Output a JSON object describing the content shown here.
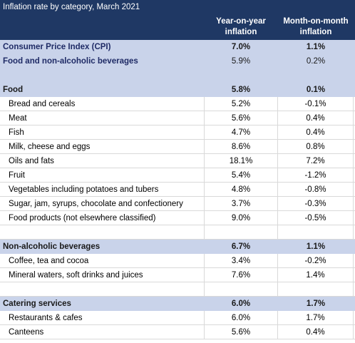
{
  "table": {
    "title": "Inflation rate by category, March 2021",
    "col_yoy": [
      "Year-on-year",
      "inflation"
    ],
    "col_mom": [
      "Month-on-month",
      "inflation"
    ],
    "cpi": {
      "label": "Consumer Price Index (CPI)",
      "yoy": "7.0%",
      "mom": "1.1%"
    },
    "food_bev": {
      "label": "Food and non-alcoholic beverages",
      "yoy": "5.9%",
      "mom": "0.2%"
    },
    "food": {
      "label": "Food",
      "yoy": "5.8%",
      "mom": "0.1%",
      "items": [
        {
          "label": "Bread and cereals",
          "yoy": "5.2%",
          "mom": "-0.1%"
        },
        {
          "label": "Meat",
          "yoy": "5.6%",
          "mom": "0.4%"
        },
        {
          "label": "Fish",
          "yoy": "4.7%",
          "mom": "0.4%"
        },
        {
          "label": "Milk, cheese and eggs",
          "yoy": "8.6%",
          "mom": "0.8%"
        },
        {
          "label": "Oils and fats",
          "yoy": "18.1%",
          "mom": "7.2%"
        },
        {
          "label": "Fruit",
          "yoy": "5.4%",
          "mom": "-1.2%"
        },
        {
          "label": "Vegetables including potatoes and tubers",
          "yoy": "4.8%",
          "mom": "-0.8%"
        },
        {
          "label": "Sugar, jam, syrups, chocolate and confectionery",
          "yoy": "3.7%",
          "mom": "-0.3%"
        },
        {
          "label": "Food products (not elsewhere classified)",
          "yoy": "9.0%",
          "mom": "-0.5%"
        }
      ]
    },
    "nab": {
      "label": "Non-alcoholic beverages",
      "yoy": "6.7%",
      "mom": "1.1%",
      "items": [
        {
          "label": "Coffee, tea and cocoa",
          "yoy": "3.4%",
          "mom": "-0.2%"
        },
        {
          "label": "Mineral waters, soft drinks and juices",
          "yoy": "7.6%",
          "mom": "1.4%"
        }
      ]
    },
    "catering": {
      "label": "Catering services",
      "yoy": "6.0%",
      "mom": "1.7%",
      "items": [
        {
          "label": "Restaurants & cafes",
          "yoy": "6.0%",
          "mom": "1.7%"
        },
        {
          "label": "Canteens",
          "yoy": "5.6%",
          "mom": "0.4%"
        }
      ]
    }
  }
}
